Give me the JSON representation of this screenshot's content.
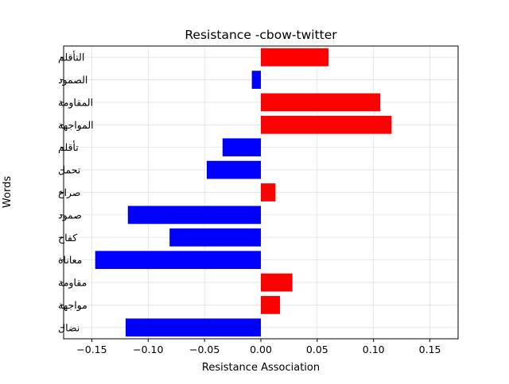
{
  "chart_data": {
    "type": "bar",
    "orientation": "horizontal",
    "title": "Resistance -cbow-twitter",
    "xlabel": "Resistance  Association",
    "ylabel": "Words",
    "xlim": [
      -0.175,
      0.175
    ],
    "x_ticks": [
      "−0.15",
      "−0.10",
      "−0.05",
      "0.00",
      "0.05",
      "0.10",
      "0.15"
    ],
    "x_tick_values": [
      -0.15,
      -0.1,
      -0.05,
      0.0,
      0.05,
      0.1,
      0.15
    ],
    "grid": true,
    "colors": {
      "positive": "#ff0000",
      "negative": "#0000ff"
    },
    "categories": [
      "التأقلم",
      "الصمود",
      "المقاومة",
      "المواجهة",
      "تأقلم",
      "تحمل",
      "صراع",
      "صمود",
      "كفاح",
      "معاناة",
      "مقاومة",
      "مواجهة",
      "نضال"
    ],
    "values": [
      0.06,
      -0.008,
      0.106,
      0.116,
      -0.034,
      -0.048,
      0.013,
      -0.118,
      -0.081,
      -0.147,
      0.028,
      0.017,
      -0.12
    ]
  }
}
